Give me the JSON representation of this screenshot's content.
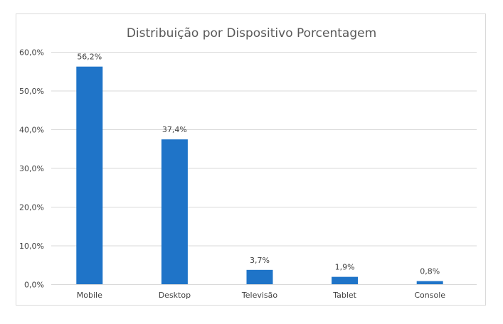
{
  "chart_data": {
    "type": "bar",
    "title": "Distribuição por Dispositivo Porcentagem",
    "xlabel": "",
    "ylabel": "",
    "categories": [
      "Mobile",
      "Desktop",
      "Televisão",
      "Tablet",
      "Console"
    ],
    "values": [
      56.2,
      37.4,
      3.7,
      1.9,
      0.8
    ],
    "value_labels": [
      "56,2%",
      "37,4%",
      "3,7%",
      "1,9%",
      "0,8%"
    ],
    "ylim": [
      0,
      60
    ],
    "yticks": [
      0,
      10,
      20,
      30,
      40,
      50,
      60
    ],
    "ytick_labels": [
      "0,0%",
      "10,0%",
      "20,0%",
      "30,0%",
      "40,0%",
      "50,0%",
      "60,0%"
    ],
    "grid": true,
    "legend": "none",
    "colors": {
      "bar": "#1f74c8",
      "grid": "#d9d9d9",
      "text": "#404040",
      "title": "#595959"
    }
  }
}
